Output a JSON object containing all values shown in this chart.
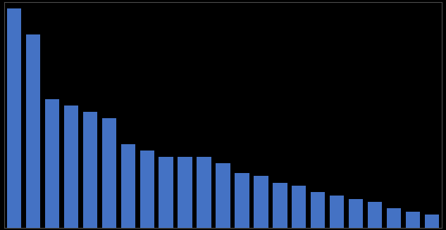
{
  "values": [
    34,
    30,
    20,
    19,
    18,
    17,
    13,
    12,
    11,
    11,
    11,
    10,
    8.5,
    8,
    7,
    6.5,
    5.5,
    5,
    4.5,
    4,
    3,
    2.5,
    2
  ],
  "bar_color": "#4472c4",
  "background_color": "#000000",
  "plot_bg_color": "#000000",
  "ylim": [
    0,
    35
  ],
  "bar_width": 0.75,
  "spine_color": "#4d4d4d"
}
